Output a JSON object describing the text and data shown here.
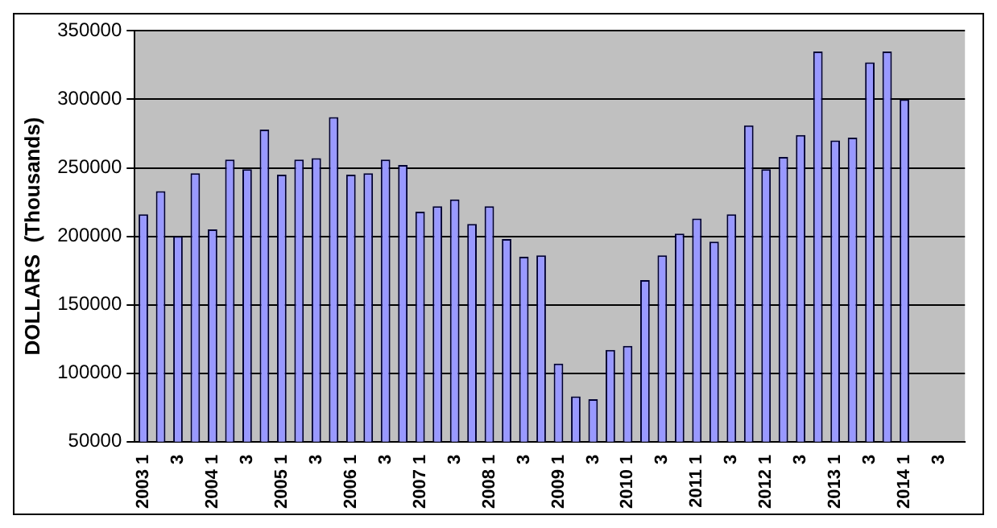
{
  "chart_data": {
    "type": "bar",
    "ylabel": "DOLLARS  (Thousands)",
    "categories": [
      "2003 1",
      null,
      "3",
      null,
      "2004 1",
      null,
      "3",
      null,
      "2005 1",
      null,
      "3",
      null,
      "2006 1",
      null,
      "3",
      null,
      "2007 1",
      null,
      "3",
      null,
      "2008 1",
      null,
      "3",
      null,
      "2009 1",
      null,
      "3",
      null,
      "2010 1",
      null,
      "3",
      null,
      "2011 1",
      null,
      "3",
      null,
      "2012 1",
      null,
      "3",
      null,
      "2013 1",
      null,
      "3",
      null,
      "2014 1",
      null,
      "3",
      null
    ],
    "series": [
      {
        "color": "#9999ff",
        "values": [
          216000,
          233000,
          200000,
          246000,
          205000,
          256000,
          249000,
          278000,
          245000,
          256000,
          257000,
          287000,
          245000,
          246000,
          256000,
          252000,
          218000,
          222000,
          227000,
          209000,
          222000,
          198000,
          185000,
          186000,
          107000,
          83000,
          81000,
          117000,
          120000,
          168000,
          186000,
          202000,
          213000,
          196000,
          216000,
          281000,
          249000,
          258000,
          274000,
          335000,
          270000,
          272000,
          327000,
          335000,
          300000,
          null,
          null,
          null
        ]
      }
    ],
    "ylim": [
      50000,
      350000
    ],
    "yticks": [
      50000,
      100000,
      150000,
      200000,
      250000,
      300000,
      350000
    ],
    "grid": "y",
    "legend": false
  }
}
